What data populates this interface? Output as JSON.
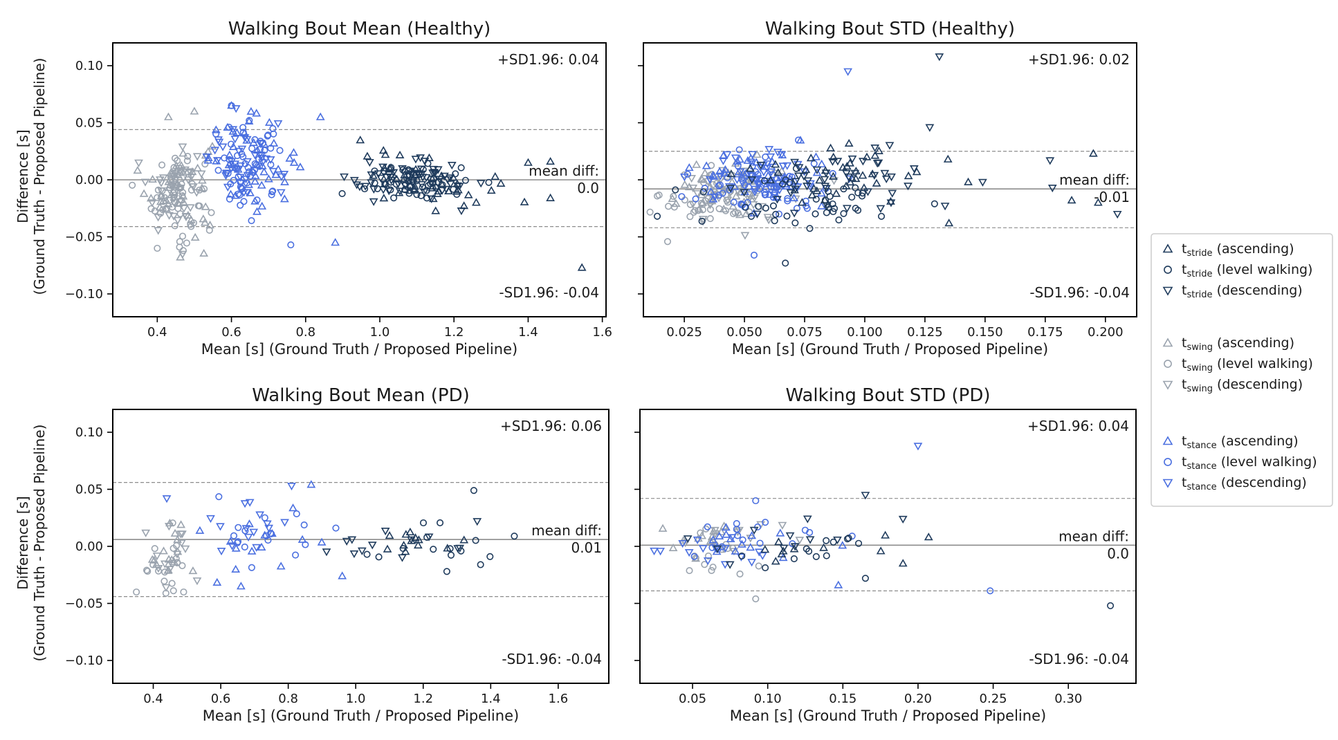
{
  "colors": {
    "stride": "#1f3b5c",
    "swing": "#9aa3ae",
    "stance": "#4a6fe0",
    "line_mean": "#8c8c8c",
    "line_sd": "#8c8c8c"
  },
  "shared": {
    "ylabel": "Difference [s]",
    "ylabel2": "(Ground Truth - Proposed Pipeline)",
    "mean_diff_label": "mean diff:"
  },
  "legend": {
    "items": [
      {
        "group": "stride",
        "label": "stride",
        "suffix": "(ascending)",
        "marker": "up"
      },
      {
        "group": "stride",
        "label": "stride",
        "suffix": "(level walking)",
        "marker": "circle"
      },
      {
        "group": "stride",
        "label": "stride",
        "suffix": "(descending)",
        "marker": "down"
      },
      {
        "group": "swing",
        "label": "swing",
        "suffix": "(ascending)",
        "marker": "up"
      },
      {
        "group": "swing",
        "label": "swing",
        "suffix": "(level walking)",
        "marker": "circle"
      },
      {
        "group": "swing",
        "label": "swing",
        "suffix": "(descending)",
        "marker": "down"
      },
      {
        "group": "stance",
        "label": "stance",
        "suffix": "(ascending)",
        "marker": "up"
      },
      {
        "group": "stance",
        "label": "stance",
        "suffix": "(level walking)",
        "marker": "circle"
      },
      {
        "group": "stance",
        "label": "stance",
        "suffix": "(descending)",
        "marker": "down"
      }
    ]
  },
  "chart_data": [
    {
      "type": "scatter",
      "title": "Walking Bout Mean (Healthy)",
      "xlabel": "Mean [s] (Ground Truth / Proposed Pipeline)",
      "xlim": [
        0.28,
        1.61
      ],
      "ylim": [
        -0.12,
        0.12
      ],
      "xticks": [
        0.4,
        0.6,
        0.8,
        1.0,
        1.2,
        1.4,
        1.6
      ],
      "xtick_labels": [
        "0.4",
        "0.6",
        "0.8",
        "1.0",
        "1.2",
        "1.4",
        "1.6"
      ],
      "yticks": [
        -0.1,
        -0.05,
        0.0,
        0.05,
        0.1
      ],
      "ytick_labels": [
        "−0.10",
        "−0.05",
        "0.00",
        "0.05",
        "0.10"
      ],
      "show_ylabels": true,
      "mean_diff": 0.0,
      "mean_diff_value": "0.0",
      "upper_sd": 0.044,
      "lower_sd": -0.041,
      "upper_text": "+SD1.96: 0.04",
      "lower_text": "-SD1.96: -0.04",
      "clusters": [
        {
          "group": "swing",
          "marker": "up",
          "cx": 0.46,
          "cy": -0.005,
          "sx": 0.045,
          "sy": 0.022,
          "n": 45
        },
        {
          "group": "swing",
          "marker": "circle",
          "cx": 0.455,
          "cy": -0.012,
          "sx": 0.035,
          "sy": 0.02,
          "n": 55
        },
        {
          "group": "swing",
          "marker": "down",
          "cx": 0.45,
          "cy": -0.01,
          "sx": 0.04,
          "sy": 0.018,
          "n": 40
        },
        {
          "group": "stance",
          "marker": "up",
          "cx": 0.66,
          "cy": 0.018,
          "sx": 0.06,
          "sy": 0.018,
          "n": 45
        },
        {
          "group": "stance",
          "marker": "circle",
          "cx": 0.65,
          "cy": 0.01,
          "sx": 0.05,
          "sy": 0.02,
          "n": 55
        },
        {
          "group": "stance",
          "marker": "down",
          "cx": 0.64,
          "cy": 0.015,
          "sx": 0.05,
          "sy": 0.016,
          "n": 45
        },
        {
          "group": "stride",
          "marker": "up",
          "cx": 1.12,
          "cy": 0.002,
          "sx": 0.09,
          "sy": 0.012,
          "n": 45
        },
        {
          "group": "stride",
          "marker": "circle",
          "cx": 1.1,
          "cy": -0.002,
          "sx": 0.07,
          "sy": 0.008,
          "n": 45
        },
        {
          "group": "stride",
          "marker": "down",
          "cx": 1.08,
          "cy": -0.001,
          "sx": 0.09,
          "sy": 0.008,
          "n": 60
        }
      ],
      "outliers": [
        {
          "group": "stride",
          "marker": "up",
          "x": 1.545,
          "y": -0.077
        },
        {
          "group": "stride",
          "marker": "up",
          "x": 1.46,
          "y": -0.016
        },
        {
          "group": "stride",
          "marker": "up",
          "x": 1.46,
          "y": 0.016
        },
        {
          "group": "stride",
          "marker": "up",
          "x": 1.4,
          "y": 0.015
        },
        {
          "group": "stride",
          "marker": "up",
          "x": 1.26,
          "y": -0.02
        },
        {
          "group": "stride",
          "marker": "down",
          "x": 1.22,
          "y": -0.027
        },
        {
          "group": "stance",
          "marker": "up",
          "x": 0.88,
          "y": -0.055
        },
        {
          "group": "stance",
          "marker": "circle",
          "x": 0.76,
          "y": -0.057
        },
        {
          "group": "stance",
          "marker": "up",
          "x": 0.6,
          "y": 0.065
        },
        {
          "group": "stance",
          "marker": "circle",
          "x": 0.6,
          "y": 0.065
        },
        {
          "group": "stance",
          "marker": "up",
          "x": 0.84,
          "y": 0.055
        },
        {
          "group": "swing",
          "marker": "circle",
          "x": 0.4,
          "y": -0.06
        },
        {
          "group": "swing",
          "marker": "circle",
          "x": 0.47,
          "y": -0.062
        },
        {
          "group": "swing",
          "marker": "circle",
          "x": 0.46,
          "y": -0.059
        },
        {
          "group": "swing",
          "marker": "up",
          "x": 0.43,
          "y": 0.055
        },
        {
          "group": "swing",
          "marker": "up",
          "x": 0.5,
          "y": 0.06
        },
        {
          "group": "swing",
          "marker": "down",
          "x": 0.35,
          "y": 0.015
        }
      ]
    },
    {
      "type": "scatter",
      "title": "Walking Bout STD (Healthy)",
      "xlabel": "Mean [s] (Ground Truth / Proposed Pipeline)",
      "xlim": [
        0.008,
        0.213
      ],
      "ylim": [
        -0.12,
        0.12
      ],
      "xticks": [
        0.025,
        0.05,
        0.075,
        0.1,
        0.125,
        0.15,
        0.175,
        0.2
      ],
      "xtick_labels": [
        "0.025",
        "0.050",
        "0.075",
        "0.100",
        "0.125",
        "0.150",
        "0.175",
        "0.200"
      ],
      "yticks": [
        -0.1,
        -0.05,
        0.0,
        0.05,
        0.1
      ],
      "ytick_labels": [
        "−0.10",
        "−0.05",
        "0.00",
        "0.05",
        "0.10"
      ],
      "show_ylabels": false,
      "mean_diff": -0.008,
      "mean_diff_value": "-0.01",
      "upper_sd": 0.025,
      "lower_sd": -0.042,
      "upper_text": "+SD1.96: 0.02",
      "lower_text": "-SD1.96: -0.04",
      "clusters": [
        {
          "group": "swing",
          "marker": "up",
          "cx": 0.04,
          "cy": -0.008,
          "sx": 0.01,
          "sy": 0.014,
          "n": 35
        },
        {
          "group": "swing",
          "marker": "circle",
          "cx": 0.036,
          "cy": -0.015,
          "sx": 0.01,
          "sy": 0.013,
          "n": 50
        },
        {
          "group": "swing",
          "marker": "down",
          "cx": 0.045,
          "cy": -0.012,
          "sx": 0.015,
          "sy": 0.014,
          "n": 35
        },
        {
          "group": "stance",
          "marker": "up",
          "cx": 0.058,
          "cy": 0.0,
          "sx": 0.014,
          "sy": 0.014,
          "n": 45
        },
        {
          "group": "stance",
          "marker": "circle",
          "cx": 0.055,
          "cy": -0.003,
          "sx": 0.014,
          "sy": 0.014,
          "n": 55
        },
        {
          "group": "stance",
          "marker": "down",
          "cx": 0.056,
          "cy": 0.004,
          "sx": 0.014,
          "sy": 0.012,
          "n": 50
        },
        {
          "group": "stride",
          "marker": "up",
          "cx": 0.085,
          "cy": 0.004,
          "sx": 0.02,
          "sy": 0.014,
          "n": 40
        },
        {
          "group": "stride",
          "marker": "circle",
          "cx": 0.075,
          "cy": -0.02,
          "sx": 0.02,
          "sy": 0.012,
          "n": 40
        },
        {
          "group": "stride",
          "marker": "down",
          "cx": 0.09,
          "cy": 0.0,
          "sx": 0.022,
          "sy": 0.012,
          "n": 45
        }
      ],
      "outliers": [
        {
          "group": "stride",
          "marker": "down",
          "x": 0.131,
          "y": 0.108
        },
        {
          "group": "stance",
          "marker": "down",
          "x": 0.093,
          "y": 0.095
        },
        {
          "group": "stride",
          "marker": "down",
          "x": 0.127,
          "y": 0.046
        },
        {
          "group": "stride",
          "marker": "up",
          "x": 0.195,
          "y": 0.023
        },
        {
          "group": "stride",
          "marker": "down",
          "x": 0.177,
          "y": 0.017
        },
        {
          "group": "stride",
          "marker": "down",
          "x": 0.205,
          "y": -0.03
        },
        {
          "group": "stride",
          "marker": "up",
          "x": 0.186,
          "y": -0.018
        },
        {
          "group": "stride",
          "marker": "down",
          "x": 0.178,
          "y": -0.007
        },
        {
          "group": "stride",
          "marker": "up",
          "x": 0.197,
          "y": -0.02
        },
        {
          "group": "stride",
          "marker": "up",
          "x": 0.143,
          "y": -0.002
        },
        {
          "group": "stride",
          "marker": "down",
          "x": 0.149,
          "y": -0.002
        },
        {
          "group": "stride",
          "marker": "up",
          "x": 0.135,
          "y": -0.038
        },
        {
          "group": "stride",
          "marker": "circle",
          "x": 0.067,
          "y": -0.073
        },
        {
          "group": "stance",
          "marker": "circle",
          "x": 0.054,
          "y": -0.066
        },
        {
          "group": "stride",
          "marker": "circle",
          "x": 0.129,
          "y": -0.021
        }
      ]
    },
    {
      "type": "scatter",
      "title": "Walking Bout Mean (PD)",
      "xlabel": "Mean [s] (Ground Truth / Proposed Pipeline)",
      "xlim": [
        0.28,
        1.75
      ],
      "ylim": [
        -0.12,
        0.12
      ],
      "xticks": [
        0.4,
        0.6,
        0.8,
        1.0,
        1.2,
        1.4,
        1.6
      ],
      "xtick_labels": [
        "0.4",
        "0.6",
        "0.8",
        "1.0",
        "1.2",
        "1.4",
        "1.6"
      ],
      "yticks": [
        -0.1,
        -0.05,
        0.0,
        0.05,
        0.1
      ],
      "ytick_labels": [
        "−0.10",
        "−0.05",
        "0.00",
        "0.05",
        "0.10"
      ],
      "show_ylabels": true,
      "mean_diff": 0.006,
      "mean_diff_value": "0.01",
      "upper_sd": 0.056,
      "lower_sd": -0.044,
      "upper_text": "+SD1.96: 0.06",
      "lower_text": "-SD1.96: -0.04",
      "clusters": [
        {
          "group": "swing",
          "marker": "up",
          "cx": 0.46,
          "cy": -0.005,
          "sx": 0.05,
          "sy": 0.018,
          "n": 15
        },
        {
          "group": "swing",
          "marker": "circle",
          "cx": 0.46,
          "cy": -0.012,
          "sx": 0.04,
          "sy": 0.016,
          "n": 18
        },
        {
          "group": "swing",
          "marker": "down",
          "cx": 0.45,
          "cy": -0.006,
          "sx": 0.05,
          "sy": 0.016,
          "n": 12
        },
        {
          "group": "stance",
          "marker": "up",
          "cx": 0.7,
          "cy": 0.008,
          "sx": 0.09,
          "sy": 0.018,
          "n": 15
        },
        {
          "group": "stance",
          "marker": "circle",
          "cx": 0.72,
          "cy": 0.012,
          "sx": 0.1,
          "sy": 0.018,
          "n": 18
        },
        {
          "group": "stance",
          "marker": "down",
          "cx": 0.66,
          "cy": 0.01,
          "sx": 0.08,
          "sy": 0.016,
          "n": 14
        },
        {
          "group": "stride",
          "marker": "up",
          "cx": 1.2,
          "cy": 0.002,
          "sx": 0.09,
          "sy": 0.006,
          "n": 12
        },
        {
          "group": "stride",
          "marker": "circle",
          "cx": 1.2,
          "cy": 0.0,
          "sx": 0.09,
          "sy": 0.012,
          "n": 12
        },
        {
          "group": "stride",
          "marker": "down",
          "cx": 1.15,
          "cy": 0.0,
          "sx": 0.1,
          "sy": 0.008,
          "n": 12
        }
      ],
      "outliers": [
        {
          "group": "stride",
          "marker": "circle",
          "x": 1.35,
          "y": 0.049
        },
        {
          "group": "stride",
          "marker": "down",
          "x": 1.36,
          "y": 0.022
        },
        {
          "group": "stride",
          "marker": "circle",
          "x": 1.47,
          "y": 0.009
        },
        {
          "group": "stride",
          "marker": "circle",
          "x": 1.37,
          "y": -0.016
        },
        {
          "group": "stride",
          "marker": "circle",
          "x": 1.27,
          "y": -0.022
        },
        {
          "group": "stance",
          "marker": "down",
          "x": 0.81,
          "y": 0.053
        },
        {
          "group": "stance",
          "marker": "down",
          "x": 0.44,
          "y": 0.042
        },
        {
          "group": "stance",
          "marker": "up",
          "x": 0.66,
          "y": -0.035
        },
        {
          "group": "stance",
          "marker": "up",
          "x": 0.96,
          "y": -0.026
        },
        {
          "group": "swing",
          "marker": "circle",
          "x": 0.35,
          "y": -0.04
        },
        {
          "group": "swing",
          "marker": "circle",
          "x": 0.49,
          "y": -0.04
        },
        {
          "group": "swing",
          "marker": "down",
          "x": 0.53,
          "y": -0.03
        }
      ]
    },
    {
      "type": "scatter",
      "title": "Walking Bout STD (PD)",
      "xlabel": "Mean [s] (Ground Truth / Proposed Pipeline)",
      "xlim": [
        0.015,
        0.345
      ],
      "ylim": [
        -0.12,
        0.12
      ],
      "xticks": [
        0.05,
        0.1,
        0.15,
        0.2,
        0.25,
        0.3
      ],
      "xtick_labels": [
        "0.05",
        "0.10",
        "0.15",
        "0.20",
        "0.25",
        "0.30"
      ],
      "yticks": [
        -0.1,
        -0.05,
        0.0,
        0.05,
        0.1
      ],
      "ytick_labels": [
        "−0.10",
        "−0.05",
        "0.00",
        "0.05",
        "0.10"
      ],
      "show_ylabels": false,
      "mean_diff": 0.001,
      "mean_diff_value": "0.0",
      "upper_sd": 0.042,
      "lower_sd": -0.039,
      "upper_text": "+SD1.96: 0.04",
      "lower_text": "-SD1.96: -0.04",
      "clusters": [
        {
          "group": "swing",
          "marker": "up",
          "cx": 0.055,
          "cy": 0.004,
          "sx": 0.015,
          "sy": 0.008,
          "n": 12
        },
        {
          "group": "swing",
          "marker": "circle",
          "cx": 0.06,
          "cy": -0.004,
          "sx": 0.018,
          "sy": 0.012,
          "n": 16
        },
        {
          "group": "swing",
          "marker": "down",
          "cx": 0.07,
          "cy": 0.006,
          "sx": 0.02,
          "sy": 0.01,
          "n": 10
        },
        {
          "group": "stance",
          "marker": "up",
          "cx": 0.08,
          "cy": 0.0,
          "sx": 0.025,
          "sy": 0.008,
          "n": 14
        },
        {
          "group": "stance",
          "marker": "circle",
          "cx": 0.085,
          "cy": 0.002,
          "sx": 0.03,
          "sy": 0.012,
          "n": 16
        },
        {
          "group": "stance",
          "marker": "down",
          "cx": 0.07,
          "cy": -0.004,
          "sx": 0.025,
          "sy": 0.008,
          "n": 16
        },
        {
          "group": "stride",
          "marker": "up",
          "cx": 0.13,
          "cy": 0.002,
          "sx": 0.03,
          "sy": 0.008,
          "n": 10
        },
        {
          "group": "stride",
          "marker": "circle",
          "cx": 0.12,
          "cy": 0.0,
          "sx": 0.03,
          "sy": 0.01,
          "n": 12
        },
        {
          "group": "stride",
          "marker": "down",
          "cx": 0.12,
          "cy": 0.004,
          "sx": 0.04,
          "sy": 0.012,
          "n": 10
        }
      ],
      "outliers": [
        {
          "group": "stance",
          "marker": "down",
          "x": 0.2,
          "y": 0.088
        },
        {
          "group": "stride",
          "marker": "down",
          "x": 0.165,
          "y": 0.045
        },
        {
          "group": "stride",
          "marker": "circle",
          "x": 0.328,
          "y": -0.052
        },
        {
          "group": "stance",
          "marker": "circle",
          "x": 0.248,
          "y": -0.039
        },
        {
          "group": "swing",
          "marker": "circle",
          "x": 0.092,
          "y": -0.046
        },
        {
          "group": "stance",
          "marker": "up",
          "x": 0.147,
          "y": -0.034
        },
        {
          "group": "stride",
          "marker": "up",
          "x": 0.19,
          "y": -0.015
        },
        {
          "group": "stride",
          "marker": "circle",
          "x": 0.165,
          "y": -0.028
        },
        {
          "group": "stride",
          "marker": "down",
          "x": 0.19,
          "y": 0.024
        },
        {
          "group": "stance",
          "marker": "circle",
          "x": 0.092,
          "y": 0.04
        }
      ]
    }
  ]
}
